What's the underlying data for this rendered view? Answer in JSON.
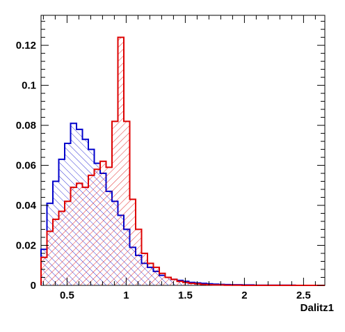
{
  "chart_data": {
    "type": "histogram",
    "xlabel": "Dalitz1",
    "ylabel": "",
    "xlim": [
      0.28,
      2.68
    ],
    "ylim": [
      0,
      0.135
    ],
    "grid": false,
    "legend": "none",
    "bin_width": 0.05,
    "x_start": 0.28,
    "x_ticks": [
      0.5,
      1,
      1.5,
      2,
      2.5
    ],
    "x_tick_labels": [
      "0.5",
      "1",
      "1.5",
      "2",
      "2.5"
    ],
    "y_ticks": [
      0,
      0.02,
      0.04,
      0.06,
      0.08,
      0.1,
      0.12
    ],
    "y_tick_labels": [
      "0",
      "0.02",
      "0.04",
      "0.06",
      "0.08",
      "0.1",
      "0.12"
    ],
    "series": [
      {
        "color": "#0000cc",
        "hatch": "diagonal-backslash",
        "values": [
          0.018,
          0.041,
          0.052,
          0.063,
          0.071,
          0.081,
          0.078,
          0.073,
          0.068,
          0.061,
          0.056,
          0.047,
          0.042,
          0.035,
          0.028,
          0.019,
          0.015,
          0.011,
          0.009,
          0.007,
          0.005,
          0.004,
          0.003,
          0.0025,
          0.002,
          0.0015,
          0.0012,
          0.001,
          0.0008,
          0.0006,
          0.0005,
          0.0004,
          0.0003,
          0.0003,
          0.0002,
          0.0002,
          0.0001,
          0.0001,
          0.0001,
          0.0001,
          0.0001,
          0.0001,
          0.0001,
          0.0,
          0.0,
          0.0,
          0.0,
          0.0
        ]
      },
      {
        "color": "#dd0000",
        "hatch": "diagonal-slash",
        "values": [
          0.014,
          0.027,
          0.033,
          0.037,
          0.042,
          0.049,
          0.051,
          0.049,
          0.055,
          0.058,
          0.062,
          0.059,
          0.082,
          0.124,
          0.082,
          0.043,
          0.028,
          0.016,
          0.011,
          0.009,
          0.006,
          0.004,
          0.003,
          0.002,
          0.0015,
          0.001,
          0.0008,
          0.0005,
          0.0003,
          0.0002,
          0.0002,
          0.0001,
          0.0001,
          0.0001,
          0.0,
          0.0,
          0.0,
          0.0,
          0.0,
          0.0,
          0.0,
          0.0,
          0.0,
          0.0,
          0.0,
          0.0,
          0.0,
          0.0
        ]
      }
    ]
  }
}
